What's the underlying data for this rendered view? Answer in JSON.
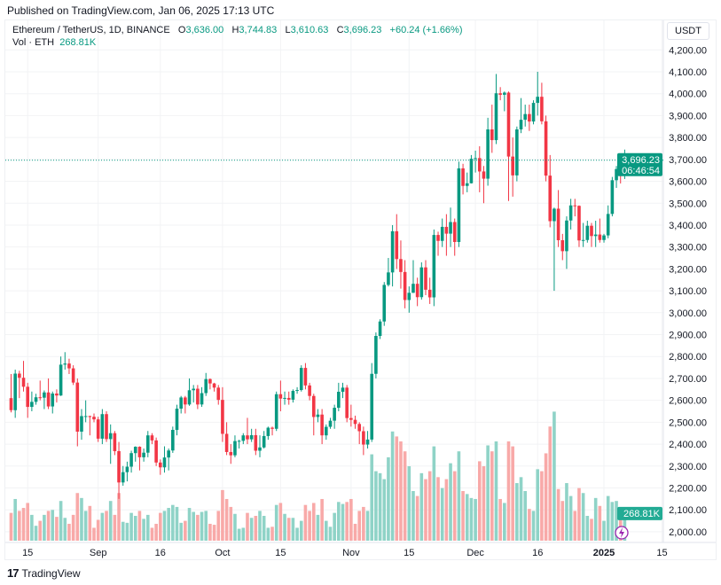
{
  "header": {
    "published": "Published on TradingView.com, Jan 06, 2025 17:13 UTC"
  },
  "legend": {
    "symbol": "Ethereum / TetherUS, 1D, BINANCE",
    "o_label": "O",
    "o": "3,636.00",
    "h_label": "H",
    "h": "3,744.83",
    "l_label": "L",
    "l": "3,610.63",
    "c_label": "C",
    "c": "3,696.23",
    "change": "+60.24 (+1.66%)",
    "vol_label": "Vol · ETH",
    "vol": "268.81K"
  },
  "currency": "USDT",
  "last_price": {
    "price": "3,696.23",
    "countdown": "06:46:54"
  },
  "last_volume": "268.81K",
  "footer": {
    "brand": "TradingView",
    "brand_mark": "17"
  },
  "colors": {
    "up": "#089981",
    "down": "#f23645",
    "vol_up": "#8fd3c7",
    "vol_down": "#f8a9a8",
    "grid": "#f2f3f5"
  },
  "chart_data": {
    "type": "candlestick",
    "symbol": "ETHUSDT",
    "interval": "1D",
    "ylim": [
      2000,
      4200
    ],
    "y_ticks": [
      "4,200.00",
      "4,100.00",
      "4,000.00",
      "3,900.00",
      "3,800.00",
      "3,700.00",
      "3,600.00",
      "3,500.00",
      "3,400.00",
      "3,300.00",
      "3,200.00",
      "3,100.00",
      "3,000.00",
      "2,900.00",
      "2,800.00",
      "2,700.00",
      "2,600.00",
      "2,500.00",
      "2,400.00",
      "2,300.00",
      "2,200.00",
      "2,100.00",
      "2,000.00"
    ],
    "x_ticks": [
      {
        "date": "2024-08-15",
        "label": "15"
      },
      {
        "date": "2024-09-01",
        "label": "Sep"
      },
      {
        "date": "2024-09-16",
        "label": "16"
      },
      {
        "date": "2024-10-01",
        "label": "Oct"
      },
      {
        "date": "2024-10-15",
        "label": "15"
      },
      {
        "date": "2024-11-01",
        "label": "Nov"
      },
      {
        "date": "2024-11-15",
        "label": "15"
      },
      {
        "date": "2024-12-01",
        "label": "Dec"
      },
      {
        "date": "2024-12-16",
        "label": "16"
      },
      {
        "date": "2025-01-01",
        "label": "2025",
        "bold": true
      },
      {
        "date": "2025-01-15",
        "label": "15"
      }
    ],
    "columns": [
      "date",
      "open",
      "high",
      "low",
      "close",
      "volume_k"
    ],
    "rows": [
      [
        "2024-08-11",
        2610,
        2720,
        2545,
        2555,
        280
      ],
      [
        "2024-08-12",
        2555,
        2740,
        2520,
        2722,
        420
      ],
      [
        "2024-08-13",
        2722,
        2735,
        2610,
        2703,
        300
      ],
      [
        "2024-08-14",
        2703,
        2780,
        2640,
        2662,
        330
      ],
      [
        "2024-08-15",
        2662,
        2680,
        2520,
        2570,
        380
      ],
      [
        "2024-08-16",
        2570,
        2640,
        2550,
        2593,
        260
      ],
      [
        "2024-08-17",
        2593,
        2630,
        2580,
        2614,
        150
      ],
      [
        "2024-08-18",
        2614,
        2690,
        2600,
        2612,
        200
      ],
      [
        "2024-08-19",
        2612,
        2645,
        2560,
        2636,
        260
      ],
      [
        "2024-08-20",
        2636,
        2700,
        2560,
        2572,
        300
      ],
      [
        "2024-08-21",
        2572,
        2640,
        2540,
        2631,
        310
      ],
      [
        "2024-08-22",
        2631,
        2650,
        2590,
        2622,
        240
      ],
      [
        "2024-08-23",
        2622,
        2800,
        2620,
        2763,
        400
      ],
      [
        "2024-08-24",
        2763,
        2820,
        2740,
        2768,
        230
      ],
      [
        "2024-08-25",
        2768,
        2790,
        2720,
        2746,
        170
      ],
      [
        "2024-08-26",
        2746,
        2760,
        2670,
        2681,
        260
      ],
      [
        "2024-08-27",
        2681,
        2700,
        2390,
        2457,
        480
      ],
      [
        "2024-08-28",
        2457,
        2560,
        2420,
        2528,
        430
      ],
      [
        "2024-08-29",
        2528,
        2600,
        2500,
        2528,
        300
      ],
      [
        "2024-08-30",
        2528,
        2530,
        2440,
        2525,
        350
      ],
      [
        "2024-08-31",
        2525,
        2540,
        2500,
        2513,
        130
      ],
      [
        "2024-09-01",
        2513,
        2525,
        2410,
        2425,
        210
      ],
      [
        "2024-09-02",
        2425,
        2560,
        2400,
        2537,
        280
      ],
      [
        "2024-09-03",
        2537,
        2550,
        2410,
        2423,
        300
      ],
      [
        "2024-09-04",
        2423,
        2490,
        2310,
        2450,
        400
      ],
      [
        "2024-09-05",
        2450,
        2460,
        2350,
        2368,
        260
      ],
      [
        "2024-09-06",
        2368,
        2410,
        2150,
        2225,
        480
      ],
      [
        "2024-09-07",
        2225,
        2300,
        2210,
        2272,
        190
      ],
      [
        "2024-09-08",
        2272,
        2320,
        2230,
        2297,
        180
      ],
      [
        "2024-09-09",
        2297,
        2370,
        2270,
        2359,
        280
      ],
      [
        "2024-09-10",
        2359,
        2390,
        2320,
        2388,
        250
      ],
      [
        "2024-09-11",
        2388,
        2390,
        2280,
        2340,
        300
      ],
      [
        "2024-09-12",
        2340,
        2380,
        2320,
        2361,
        220
      ],
      [
        "2024-09-13",
        2361,
        2460,
        2340,
        2440,
        260
      ],
      [
        "2024-09-14",
        2440,
        2450,
        2400,
        2417,
        130
      ],
      [
        "2024-09-15",
        2417,
        2430,
        2300,
        2316,
        170
      ],
      [
        "2024-09-16",
        2316,
        2330,
        2260,
        2294,
        280
      ],
      [
        "2024-09-17",
        2294,
        2390,
        2270,
        2339,
        300
      ],
      [
        "2024-09-18",
        2339,
        2380,
        2280,
        2371,
        330
      ],
      [
        "2024-09-19",
        2371,
        2480,
        2360,
        2465,
        360
      ],
      [
        "2024-09-20",
        2465,
        2580,
        2440,
        2562,
        340
      ],
      [
        "2024-09-21",
        2562,
        2620,
        2540,
        2613,
        180
      ],
      [
        "2024-09-22",
        2613,
        2620,
        2540,
        2581,
        200
      ],
      [
        "2024-09-23",
        2581,
        2700,
        2575,
        2646,
        330
      ],
      [
        "2024-09-24",
        2646,
        2670,
        2590,
        2653,
        290
      ],
      [
        "2024-09-25",
        2653,
        2670,
        2560,
        2581,
        260
      ],
      [
        "2024-09-26",
        2581,
        2660,
        2570,
        2633,
        290
      ],
      [
        "2024-09-27",
        2633,
        2725,
        2620,
        2697,
        300
      ],
      [
        "2024-09-28",
        2697,
        2700,
        2650,
        2677,
        170
      ],
      [
        "2024-09-29",
        2677,
        2680,
        2640,
        2658,
        160
      ],
      [
        "2024-09-30",
        2658,
        2670,
        2580,
        2602,
        300
      ],
      [
        "2024-10-01",
        2602,
        2660,
        2410,
        2447,
        510
      ],
      [
        "2024-10-02",
        2447,
        2500,
        2350,
        2364,
        420
      ],
      [
        "2024-10-03",
        2364,
        2400,
        2310,
        2349,
        340
      ],
      [
        "2024-10-04",
        2349,
        2440,
        2340,
        2414,
        270
      ],
      [
        "2024-10-05",
        2414,
        2420,
        2380,
        2415,
        120
      ],
      [
        "2024-10-06",
        2415,
        2450,
        2400,
        2440,
        130
      ],
      [
        "2024-10-07",
        2440,
        2520,
        2400,
        2422,
        280
      ],
      [
        "2024-10-08",
        2422,
        2470,
        2410,
        2441,
        230
      ],
      [
        "2024-10-09",
        2441,
        2470,
        2350,
        2370,
        250
      ],
      [
        "2024-10-10",
        2370,
        2440,
        2340,
        2385,
        300
      ],
      [
        "2024-10-11",
        2385,
        2460,
        2380,
        2437,
        250
      ],
      [
        "2024-10-12",
        2437,
        2480,
        2420,
        2475,
        130
      ],
      [
        "2024-10-13",
        2475,
        2480,
        2440,
        2470,
        140
      ],
      [
        "2024-10-14",
        2470,
        2640,
        2460,
        2628,
        360
      ],
      [
        "2024-10-15",
        2628,
        2690,
        2550,
        2608,
        380
      ],
      [
        "2024-10-16",
        2608,
        2640,
        2580,
        2611,
        270
      ],
      [
        "2024-10-17",
        2611,
        2640,
        2580,
        2603,
        230
      ],
      [
        "2024-10-18",
        2603,
        2650,
        2590,
        2643,
        230
      ],
      [
        "2024-10-19",
        2643,
        2660,
        2630,
        2647,
        130
      ],
      [
        "2024-10-20",
        2647,
        2760,
        2640,
        2748,
        200
      ],
      [
        "2024-10-21",
        2748,
        2770,
        2650,
        2668,
        360
      ],
      [
        "2024-10-22",
        2668,
        2680,
        2600,
        2620,
        300
      ],
      [
        "2024-10-23",
        2620,
        2630,
        2440,
        2524,
        380
      ],
      [
        "2024-10-24",
        2524,
        2560,
        2500,
        2535,
        260
      ],
      [
        "2024-10-25",
        2535,
        2560,
        2400,
        2440,
        420
      ],
      [
        "2024-10-26",
        2440,
        2490,
        2420,
        2479,
        200
      ],
      [
        "2024-10-27",
        2479,
        2520,
        2470,
        2507,
        140
      ],
      [
        "2024-10-28",
        2507,
        2580,
        2470,
        2566,
        280
      ],
      [
        "2024-10-29",
        2566,
        2680,
        2550,
        2639,
        390
      ],
      [
        "2024-10-30",
        2639,
        2680,
        2610,
        2658,
        370
      ],
      [
        "2024-10-31",
        2658,
        2670,
        2500,
        2519,
        390
      ],
      [
        "2024-11-01",
        2519,
        2580,
        2480,
        2511,
        420
      ],
      [
        "2024-11-02",
        2511,
        2530,
        2470,
        2492,
        170
      ],
      [
        "2024-11-03",
        2492,
        2500,
        2400,
        2459,
        300
      ],
      [
        "2024-11-04",
        2459,
        2480,
        2350,
        2398,
        340
      ],
      [
        "2024-11-05",
        2398,
        2460,
        2380,
        2421,
        300
      ],
      [
        "2024-11-06",
        2421,
        2770,
        2410,
        2721,
        870
      ],
      [
        "2024-11-07",
        2721,
        2910,
        2700,
        2894,
        700
      ],
      [
        "2024-11-08",
        2894,
        2970,
        2880,
        2960,
        680
      ],
      [
        "2024-11-09",
        2960,
        3140,
        2940,
        3127,
        620
      ],
      [
        "2024-11-10",
        3127,
        3250,
        3120,
        3184,
        840
      ],
      [
        "2024-11-11",
        3184,
        3400,
        3120,
        3372,
        1100
      ],
      [
        "2024-11-12",
        3372,
        3450,
        3200,
        3245,
        1050
      ],
      [
        "2024-11-13",
        3245,
        3330,
        3110,
        3186,
        1000
      ],
      [
        "2024-11-14",
        3186,
        3240,
        3020,
        3058,
        900
      ],
      [
        "2024-11-15",
        3058,
        3120,
        3000,
        3091,
        750
      ],
      [
        "2024-11-16",
        3091,
        3240,
        3090,
        3132,
        500
      ],
      [
        "2024-11-17",
        3132,
        3160,
        3030,
        3071,
        450
      ],
      [
        "2024-11-18",
        3071,
        3230,
        3060,
        3207,
        680
      ],
      [
        "2024-11-19",
        3207,
        3240,
        3080,
        3105,
        620
      ],
      [
        "2024-11-20",
        3105,
        3160,
        3040,
        3070,
        700
      ],
      [
        "2024-11-21",
        3070,
        3380,
        3030,
        3355,
        950
      ],
      [
        "2024-11-22",
        3355,
        3370,
        3260,
        3328,
        640
      ],
      [
        "2024-11-23",
        3328,
        3430,
        3300,
        3392,
        530
      ],
      [
        "2024-11-24",
        3392,
        3450,
        3260,
        3361,
        620
      ],
      [
        "2024-11-25",
        3361,
        3480,
        3300,
        3414,
        780
      ],
      [
        "2024-11-26",
        3414,
        3430,
        3260,
        3323,
        700
      ],
      [
        "2024-11-27",
        3323,
        3690,
        3300,
        3659,
        900
      ],
      [
        "2024-11-28",
        3659,
        3680,
        3540,
        3579,
        500
      ],
      [
        "2024-11-29",
        3579,
        3640,
        3550,
        3591,
        470
      ],
      [
        "2024-11-30",
        3591,
        3720,
        3590,
        3703,
        430
      ],
      [
        "2024-12-01",
        3703,
        3740,
        3640,
        3706,
        420
      ],
      [
        "2024-12-02",
        3706,
        3760,
        3550,
        3645,
        800
      ],
      [
        "2024-12-03",
        3645,
        3670,
        3500,
        3612,
        750
      ],
      [
        "2024-12-04",
        3612,
        3890,
        3580,
        3837,
        960
      ],
      [
        "2024-12-05",
        3837,
        3950,
        3730,
        3788,
        900
      ],
      [
        "2024-12-06",
        3788,
        4090,
        3770,
        4002,
        1000
      ],
      [
        "2024-12-07",
        4002,
        4030,
        3970,
        3995,
        420
      ],
      [
        "2024-12-08",
        3995,
        4010,
        3920,
        4005,
        380
      ],
      [
        "2024-12-09",
        4005,
        4010,
        3510,
        3713,
        1000
      ],
      [
        "2024-12-10",
        3713,
        3800,
        3530,
        3627,
        950
      ],
      [
        "2024-12-11",
        3627,
        3850,
        3600,
        3837,
        580
      ],
      [
        "2024-12-12",
        3837,
        3980,
        3820,
        3881,
        640
      ],
      [
        "2024-12-13",
        3881,
        3950,
        3850,
        3907,
        500
      ],
      [
        "2024-12-14",
        3907,
        3950,
        3830,
        3873,
        320
      ],
      [
        "2024-12-15",
        3873,
        3970,
        3860,
        3958,
        300
      ],
      [
        "2024-12-16",
        3958,
        4100,
        3900,
        3986,
        720
      ],
      [
        "2024-12-17",
        3986,
        4050,
        3860,
        3874,
        700
      ],
      [
        "2024-12-18",
        3874,
        3900,
        3600,
        3626,
        880
      ],
      [
        "2024-12-19",
        3626,
        3720,
        3390,
        3418,
        1150
      ],
      [
        "2024-12-20",
        3418,
        3480,
        3100,
        3475,
        1300
      ],
      [
        "2024-12-21",
        3475,
        3560,
        3300,
        3331,
        520
      ],
      [
        "2024-12-22",
        3331,
        3360,
        3240,
        3281,
        400
      ],
      [
        "2024-12-23",
        3281,
        3440,
        3200,
        3421,
        580
      ],
      [
        "2024-12-24",
        3421,
        3520,
        3380,
        3490,
        450
      ],
      [
        "2024-12-25",
        3490,
        3520,
        3440,
        3488,
        300
      ],
      [
        "2024-12-26",
        3488,
        3490,
        3300,
        3330,
        530
      ],
      [
        "2024-12-27",
        3330,
        3410,
        3300,
        3332,
        480
      ],
      [
        "2024-12-28",
        3332,
        3420,
        3320,
        3397,
        250
      ],
      [
        "2024-12-29",
        3397,
        3410,
        3300,
        3350,
        220
      ],
      [
        "2024-12-30",
        3350,
        3420,
        3300,
        3357,
        430
      ],
      [
        "2024-12-31",
        3357,
        3430,
        3320,
        3332,
        350
      ],
      [
        "2025-01-01",
        3332,
        3360,
        3320,
        3353,
        200
      ],
      [
        "2025-01-02",
        3353,
        3490,
        3340,
        3451,
        450
      ],
      [
        "2025-01-03",
        3451,
        3620,
        3440,
        3605,
        390
      ],
      [
        "2025-01-04",
        3605,
        3670,
        3570,
        3656,
        400
      ],
      [
        "2025-01-05",
        3656,
        3670,
        3590,
        3636,
        230
      ],
      [
        "2025-01-06",
        3636.0,
        3744.83,
        3610.63,
        3696.23,
        268.81
      ]
    ]
  }
}
